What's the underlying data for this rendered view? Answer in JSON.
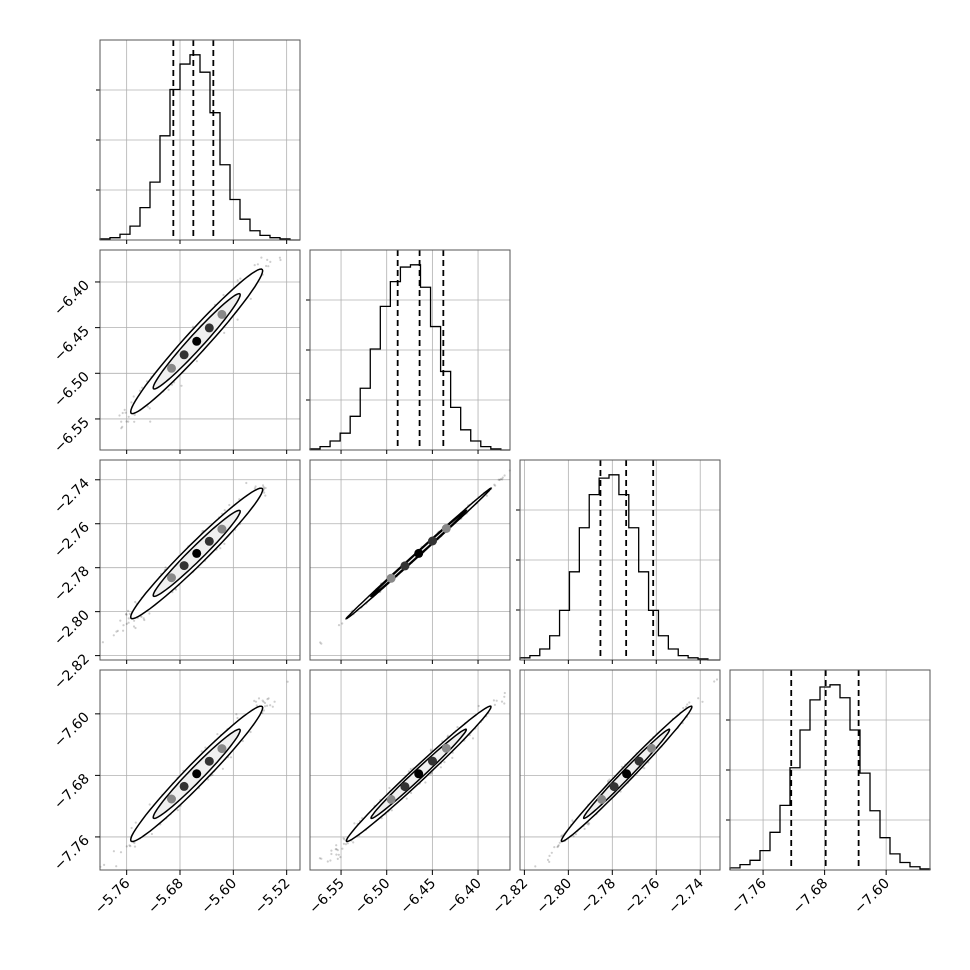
{
  "chart_data": {
    "type": "corner",
    "parameters": 4,
    "grid": true,
    "title": "",
    "axes": [
      {
        "index": 0,
        "range": [
          -5.8,
          -5.5
        ],
        "ticks": [
          -5.76,
          -5.68,
          -5.6,
          -5.52
        ],
        "tick_labels": [
          "−5.76",
          "−5.68",
          "−5.60",
          "−5.52"
        ]
      },
      {
        "index": 1,
        "range": [
          -6.584,
          -6.365
        ],
        "ticks": [
          -6.55,
          -6.5,
          -6.45,
          -6.4
        ],
        "tick_labels": [
          "−6.55",
          "−6.50",
          "−6.45",
          "−6.40"
        ]
      },
      {
        "index": 2,
        "range": [
          -2.822,
          -2.731
        ],
        "ticks": [
          -2.82,
          -2.8,
          -2.78,
          -2.76,
          -2.74
        ],
        "tick_labels": [
          "−2.82",
          "−2.80",
          "−2.78",
          "−2.76",
          "−2.74"
        ]
      },
      {
        "index": 3,
        "range": [
          -7.803,
          -7.543
        ],
        "ticks": [
          -7.76,
          -7.68,
          -7.6
        ],
        "tick_labels": [
          "−7.76",
          "−7.68",
          "−7.60"
        ]
      }
    ],
    "marginals": [
      {
        "param": 0,
        "quantiles": [
          -5.69,
          -5.66,
          -5.63
        ],
        "bins": [
          -5.8,
          -5.785,
          -5.77,
          -5.755,
          -5.74,
          -5.725,
          -5.71,
          -5.695,
          -5.68,
          -5.665,
          -5.65,
          -5.635,
          -5.62,
          -5.605,
          -5.59,
          -5.575,
          -5.56,
          -5.545,
          -5.53,
          -5.515,
          -5.5
        ],
        "counts": [
          1,
          2,
          5,
          12,
          28,
          50,
          90,
          130,
          152,
          160,
          145,
          110,
          65,
          35,
          18,
          8,
          4,
          2,
          1,
          0
        ]
      },
      {
        "param": 1,
        "quantiles": [
          -6.488,
          -6.464,
          -6.438
        ],
        "bins": [
          -6.584,
          -6.573,
          -6.562,
          -6.551,
          -6.54,
          -6.529,
          -6.518,
          -6.507,
          -6.496,
          -6.485,
          -6.474,
          -6.463,
          -6.452,
          -6.441,
          -6.43,
          -6.419,
          -6.408,
          -6.397,
          -6.386,
          -6.375,
          -6.365
        ],
        "counts": [
          1,
          3,
          8,
          15,
          30,
          55,
          90,
          128,
          150,
          163,
          165,
          145,
          110,
          70,
          38,
          18,
          8,
          3,
          1,
          0
        ]
      },
      {
        "param": 2,
        "quantiles": [
          -2.7854,
          -2.7737,
          -2.7614
        ],
        "bins": [
          -2.822,
          -2.8175,
          -2.813,
          -2.8085,
          -2.804,
          -2.7995,
          -2.795,
          -2.7905,
          -2.786,
          -2.7815,
          -2.777,
          -2.7725,
          -2.768,
          -2.7635,
          -2.759,
          -2.7545,
          -2.75,
          -2.7455,
          -2.741,
          -2.7365,
          -2.731
        ],
        "counts": [
          2,
          4,
          10,
          22,
          45,
          80,
          120,
          150,
          165,
          168,
          150,
          120,
          80,
          45,
          22,
          10,
          4,
          2,
          1,
          0
        ]
      },
      {
        "param": 3,
        "quantiles": [
          -7.7234,
          -7.6786,
          -7.6358
        ],
        "bins": [
          -7.803,
          -7.79,
          -7.777,
          -7.764,
          -7.751,
          -7.738,
          -7.725,
          -7.712,
          -7.699,
          -7.686,
          -7.673,
          -7.66,
          -7.647,
          -7.634,
          -7.621,
          -7.608,
          -7.595,
          -7.582,
          -7.569,
          -7.556,
          -7.543
        ],
        "counts": [
          2,
          5,
          9,
          18,
          35,
          60,
          95,
          130,
          158,
          170,
          172,
          160,
          130,
          90,
          55,
          30,
          15,
          7,
          3,
          1
        ]
      }
    ],
    "pairs": [
      {
        "x_param": 0,
        "y_param": 1,
        "center": [
          -5.655,
          -6.465
        ],
        "spread": [
          0.045,
          0.036
        ],
        "correlation": 0.975
      },
      {
        "x_param": 0,
        "y_param": 2,
        "center": [
          -5.655,
          -2.7735
        ],
        "spread": [
          0.045,
          0.0135
        ],
        "correlation": 0.975
      },
      {
        "x_param": 1,
        "y_param": 2,
        "center": [
          -6.465,
          -2.7735
        ],
        "spread": [
          0.036,
          0.0135
        ],
        "correlation": 0.999
      },
      {
        "x_param": 0,
        "y_param": 3,
        "center": [
          -5.655,
          -7.678
        ],
        "spread": [
          0.045,
          0.04
        ],
        "correlation": 0.975
      },
      {
        "x_param": 1,
        "y_param": 3,
        "center": [
          -6.465,
          -7.678
        ],
        "spread": [
          0.036,
          0.04
        ],
        "correlation": 0.99
      },
      {
        "x_param": 2,
        "y_param": 3,
        "center": [
          -2.7735,
          -7.678
        ],
        "spread": [
          0.0135,
          0.04
        ],
        "correlation": 0.99
      }
    ],
    "contour_levels_sigma": [
      1,
      2
    ]
  }
}
